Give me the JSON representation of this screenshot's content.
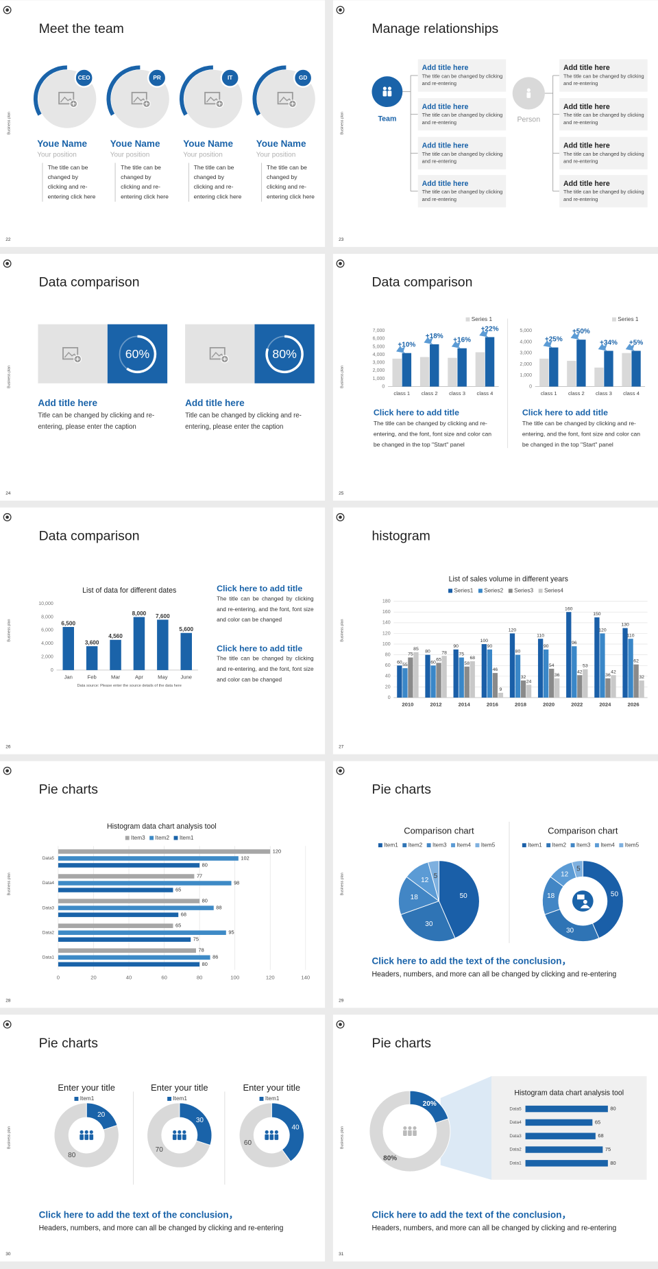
{
  "slides": [
    {
      "number": 22,
      "side_label": "Business plan",
      "title": "Meet the team",
      "members": [
        {
          "badge": "CEO",
          "name": "Youe Name",
          "position": "Your position",
          "text": "The title can be changed by clicking and re-entering click here"
        },
        {
          "badge": "PR",
          "name": "Youe Name",
          "position": "Your position",
          "text": "The title can be changed by clicking and re-entering click here"
        },
        {
          "badge": "IT",
          "name": "Youe Name",
          "position": "Your position",
          "text": "The title can be changed by clicking and re-entering click here"
        },
        {
          "badge": "GD",
          "name": "Youe Name",
          "position": "Your position",
          "text": "The title can be changed by clicking and re-entering click here"
        }
      ]
    },
    {
      "number": 23,
      "side_label": "Business plan",
      "title": "Manage relationships",
      "team": "Team",
      "person": "Person",
      "left_boxes": [
        {
          "title": "Add title here",
          "text": "The title can be changed by clicking and re-entering"
        },
        {
          "title": "Add title here",
          "text": "The title can be changed by clicking and re-entering"
        },
        {
          "title": "Add title here",
          "text": "The title can be changed by clicking and re-entering"
        },
        {
          "title": "Add title here",
          "text": "The title can be changed by clicking and re-entering"
        }
      ],
      "right_boxes": [
        {
          "title": "Add title here",
          "text": "The title can be changed by clicking and re-entering"
        },
        {
          "title": "Add title here",
          "text": "The title can be changed by clicking and re-entering"
        },
        {
          "title": "Add title here",
          "text": "The title can be changed by clicking and re-entering"
        },
        {
          "title": "Add title here",
          "text": "The title can be changed by clicking and re-entering"
        }
      ]
    },
    {
      "number": 24,
      "side_label": "Business plan",
      "title": "Data comparison",
      "cards": [
        {
          "title": "Add title here",
          "text": "Title can be changed by clicking and re-entering, please enter the caption"
        },
        {
          "title": "Add title here",
          "text": "Title can be changed by clicking and re-entering, please enter the caption"
        }
      ]
    },
    {
      "number": 25,
      "side_label": "Business plan",
      "title": "Data comparison",
      "blocks": [
        {
          "title": "Click here to add title",
          "text": "The title can be changed by clicking and re-entering, and the font, font size and color can be changed in the top \"Start\" panel"
        },
        {
          "title": "Click here to add title",
          "text": "The title can be changed by clicking and re-entering, and the font, font size and color can be changed in the top \"Start\" panel"
        }
      ]
    },
    {
      "number": 26,
      "side_label": "Business plan",
      "title": "Data comparison",
      "blocks": [
        {
          "title": "Click here to add title",
          "text": "The title can be changed by clicking and re-entering, and the font, font size and color can be changed"
        },
        {
          "title": "Click here to add title",
          "text": "The title can be changed by clicking and re-entering, and the font, font size and color can be changed"
        }
      ]
    },
    {
      "number": 27,
      "side_label": "Business plan",
      "title": "histogram"
    },
    {
      "number": 28,
      "side_label": "Business plan",
      "title": "Pie charts"
    },
    {
      "number": 29,
      "side_label": "Business plan",
      "title": "Pie charts",
      "conclusion": "Click here to add the text of the conclusion，",
      "text": "Headers, numbers, and more can all be changed by clicking and re-entering"
    },
    {
      "number": 30,
      "side_label": "Business plan",
      "title": "Pie charts",
      "conclusion": "Click here to add the text of the conclusion，",
      "text": "Headers, numbers, and more can all be changed by clicking and re-entering"
    },
    {
      "number": 31,
      "side_label": "Business plan",
      "title": "Pie charts",
      "conclusion": "Click here to add the text of the conclusion，",
      "text": "Headers, numbers, and more can all be changed by clicking and re-entering"
    }
  ],
  "chart_data": [
    {
      "type": "progress",
      "values": [
        60,
        80
      ],
      "value_labels": [
        "60%",
        "80%"
      ],
      "range": [
        0,
        100
      ],
      "color": "#ffffff"
    },
    {
      "type": "bar",
      "categories": [
        "class 1",
        "class 2",
        "class 3",
        "class 4"
      ],
      "series": [
        {
          "name": "Series 1",
          "color": "#d9d9d9",
          "values": [
            3500,
            3700,
            3600,
            4300
          ]
        },
        {
          "color": "#1a63a9",
          "values": [
            4200,
            5300,
            4800,
            6200
          ]
        }
      ],
      "annotations": [
        "+10%",
        "+18%",
        "+16%",
        "+22%"
      ],
      "ylim": [
        0,
        7000
      ],
      "yticks": [
        0,
        {
          "value": 1000,
          "label": "1,000"
        },
        {
          "value": 2000,
          "label": "2,000"
        },
        {
          "value": 3000,
          "label": "3,000"
        },
        {
          "value": 4000,
          "label": "4,000"
        },
        {
          "value": 5000,
          "label": "5,000"
        },
        {
          "value": 6000,
          "label": "6,000"
        },
        {
          "value": 7000,
          "label": "7,000"
        }
      ],
      "grid": false,
      "legend": "top-right"
    },
    {
      "type": "bar",
      "categories": [
        "class 1",
        "class 2",
        "class 3",
        "class 4"
      ],
      "series": [
        {
          "name": "Series 1",
          "color": "#d9d9d9",
          "values": [
            2500,
            2300,
            1700,
            3000
          ]
        },
        {
          "color": "#1a63a9",
          "values": [
            3500,
            4200,
            3200,
            3200
          ]
        }
      ],
      "annotations": [
        "+25%",
        "+50%",
        "+34%",
        "+5%"
      ],
      "ylim": [
        0,
        5000
      ],
      "yticks": [
        0,
        {
          "value": 1000,
          "label": "1,000"
        },
        {
          "value": 2000,
          "label": "2,000"
        },
        {
          "value": 3000,
          "label": "3,000"
        },
        {
          "value": 4000,
          "label": "4,000"
        },
        {
          "value": 5000,
          "label": "5,000"
        }
      ],
      "grid": false,
      "legend": "top-right"
    },
    {
      "type": "bar",
      "title": "List of data for different dates",
      "categories": [
        "Jan",
        "Feb",
        "Mar",
        "Apr",
        "May",
        "June"
      ],
      "values": [
        6500,
        3600,
        4560,
        8000,
        7600,
        5600
      ],
      "value_labels": [
        "6,500",
        "3,600",
        "4,560",
        "8,000",
        "7,600",
        "5,600"
      ],
      "color": "#1a63a9",
      "ylim": [
        0,
        10000
      ],
      "yticks": [
        0,
        {
          "value": 2000,
          "label": "2,000"
        },
        {
          "value": 4000,
          "label": "4,000"
        },
        {
          "value": 6000,
          "label": "6,000"
        },
        {
          "value": 8000,
          "label": "8,000"
        },
        {
          "value": 10000,
          "label": "10,000"
        }
      ],
      "grid": false,
      "data_labels": true,
      "note": "Data source: Please enter the source details of the data here"
    },
    {
      "type": "bar",
      "title": "List of sales volume in different years",
      "categories": [
        "2010",
        "2012",
        "2014",
        "2016",
        "2018",
        "2020",
        "2022",
        "2024",
        "2026"
      ],
      "series": [
        {
          "name": "Series1",
          "color": "#1a5fa8",
          "values": [
            60,
            80,
            90,
            100,
            120,
            110,
            160,
            150,
            130
          ]
        },
        {
          "name": "Series2",
          "color": "#3a87c8",
          "values": [
            55,
            60,
            75,
            90,
            80,
            90,
            96,
            120,
            110
          ]
        },
        {
          "name": "Series3",
          "color": "#8a8a8a",
          "values": [
            75,
            65,
            58,
            46,
            32,
            54,
            42,
            36,
            62
          ]
        },
        {
          "name": "Series4",
          "color": "#c9c9c9",
          "values": [
            85,
            78,
            68,
            9,
            24,
            36,
            53,
            42,
            32
          ]
        }
      ],
      "ylim": [
        0,
        180
      ],
      "yticks": [
        0,
        20,
        40,
        60,
        80,
        100,
        120,
        140,
        160,
        180
      ],
      "grid": true,
      "data_labels": true,
      "legend": "top"
    },
    {
      "type": "hbar",
      "title": "Histogram data chart analysis tool",
      "categories": [
        "Data1",
        "Data2",
        "Data3",
        "Data4",
        "Data5"
      ],
      "series": [
        {
          "name": "Item3",
          "color": "#a6a6a6",
          "values": [
            78,
            65,
            80,
            77,
            120
          ]
        },
        {
          "name": "Item2",
          "color": "#3e8ac6",
          "values": [
            86,
            95,
            88,
            98,
            102
          ]
        },
        {
          "name": "Item1",
          "color": "#1a63a9",
          "values": [
            80,
            75,
            68,
            65,
            80
          ]
        }
      ],
      "xlim": [
        0,
        140
      ],
      "xticks": [
        0,
        20,
        40,
        60,
        80,
        100,
        120,
        140
      ],
      "grid": true,
      "data_labels": true,
      "legend": "top"
    },
    {
      "type": "pie",
      "title": "Comparison chart",
      "categories": [
        "Item1",
        "Item2",
        "Item3",
        "Item4",
        "Item5"
      ],
      "values": [
        50,
        30,
        18,
        12,
        5
      ],
      "colors": [
        "#1a5fa8",
        "#2f74b5",
        "#4286c5",
        "#5b9bd5",
        "#7eb0df"
      ],
      "legend": "top"
    },
    {
      "type": "donut",
      "title": "Comparison chart",
      "categories": [
        "Item1",
        "Item2",
        "Item3",
        "Item4",
        "Item5"
      ],
      "values": [
        50,
        30,
        18,
        12,
        5
      ],
      "colors": [
        "#1a5fa8",
        "#2f74b5",
        "#4286c5",
        "#5b9bd5",
        "#7eb0df"
      ],
      "legend": "top"
    },
    {
      "type": "donut",
      "title": "Enter your title",
      "categories": [
        "Item1",
        null
      ],
      "values": [
        20,
        80
      ],
      "colors": [
        "#1a63a9",
        "#d9d9d9"
      ],
      "legend": "top"
    },
    {
      "type": "donut",
      "title": "Enter your title",
      "categories": [
        "Item1",
        null
      ],
      "values": [
        30,
        70
      ],
      "colors": [
        "#1a63a9",
        "#d9d9d9"
      ],
      "legend": "top"
    },
    {
      "type": "donut",
      "title": "Enter your title",
      "categories": [
        "Item1",
        null
      ],
      "values": [
        40,
        60
      ],
      "colors": [
        "#1a63a9",
        "#d9d9d9"
      ],
      "legend": "top"
    },
    {
      "type": "donut",
      "values": [
        20,
        80
      ],
      "value_labels": [
        "20%",
        "80%"
      ],
      "colors": [
        "#1a63a9",
        "#d9d9d9"
      ]
    },
    {
      "type": "hbar",
      "title": "Histogram data chart analysis tool",
      "categories": [
        "Data1",
        "Data2",
        "Data3",
        "Data4",
        "Data5"
      ],
      "values": [
        80,
        75,
        68,
        65,
        80
      ],
      "color": "#1a63a9",
      "xlim": [
        0,
        100
      ],
      "grid": false,
      "data_labels": true
    }
  ]
}
